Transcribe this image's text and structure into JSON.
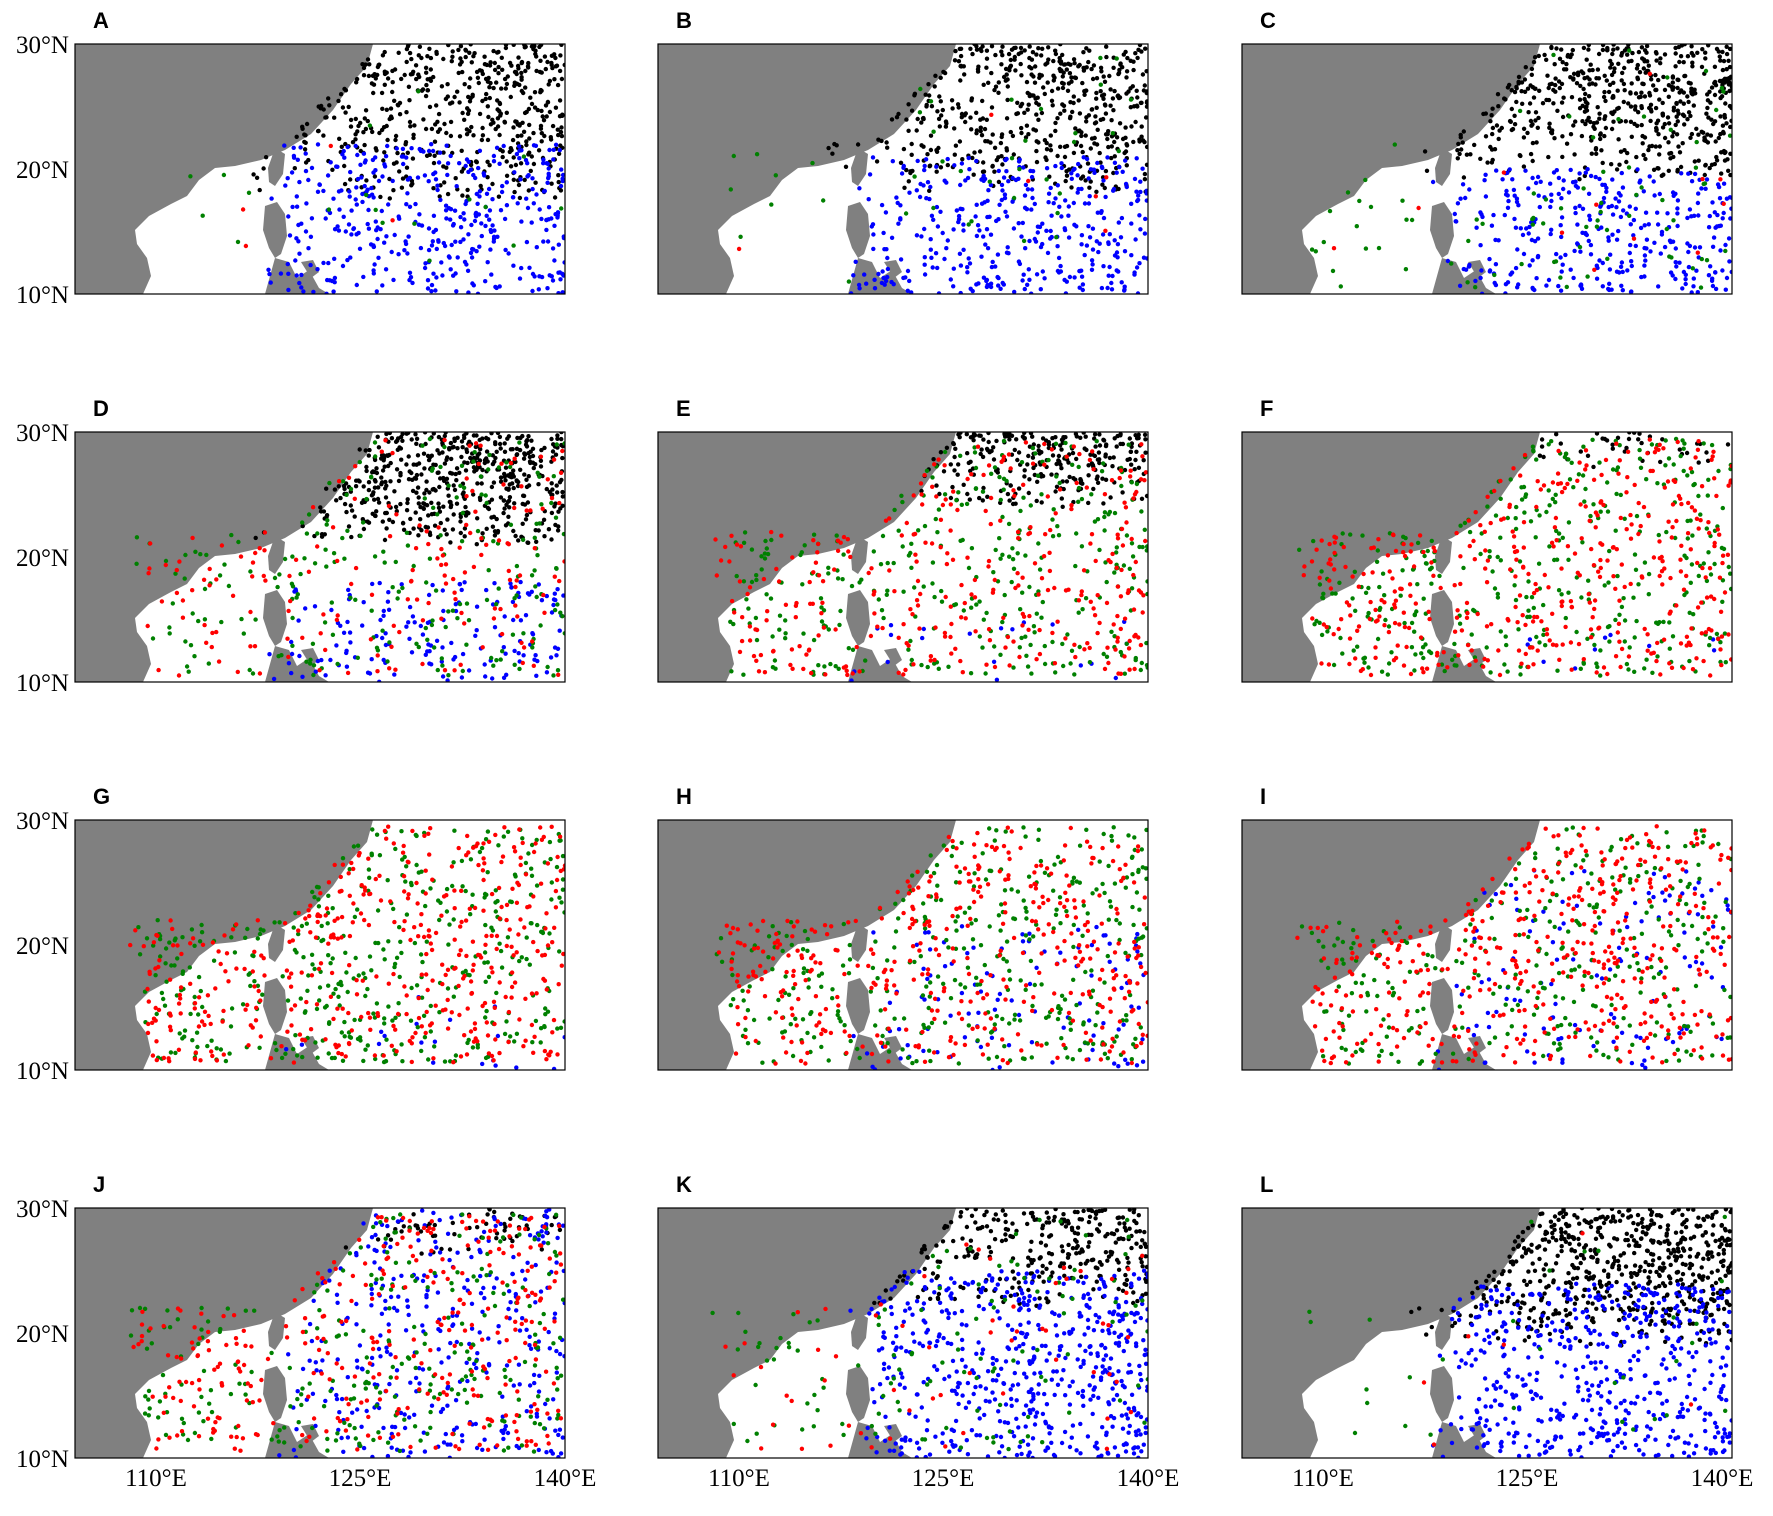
{
  "figure": {
    "panel_letters": [
      "A",
      "B",
      "C",
      "D",
      "E",
      "F",
      "G",
      "H",
      "I",
      "J",
      "K",
      "L"
    ],
    "y_tick_labels": [
      "30°N",
      "20°N",
      "10°N"
    ],
    "x_tick_labels": [
      "110°E",
      "125°E",
      "140°E"
    ],
    "colors": {
      "land": "#808080",
      "black_points": "#000000",
      "blue_points": "#0000ff",
      "green_points": "#008000",
      "red_points": "#ff0000"
    }
  },
  "map_data": {
    "type": "scatter",
    "lon_range": [
      104,
      140
    ],
    "lat_range": [
      10,
      30
    ],
    "x_ticks": [
      110,
      125,
      140
    ],
    "y_ticks": [
      30,
      20,
      10
    ],
    "panels": [
      {
        "letter": "A",
        "mix": {
          "black": 520,
          "blue": 420,
          "green": 18,
          "red": 4
        },
        "black_lat_min": 17.5,
        "blue_lat_max": 22
      },
      {
        "letter": "B",
        "mix": {
          "black": 520,
          "blue": 380,
          "green": 40,
          "red": 6
        },
        "black_lat_min": 18,
        "blue_lat_max": 21
      },
      {
        "letter": "C",
        "mix": {
          "black": 560,
          "blue": 340,
          "green": 80,
          "red": 12
        },
        "black_lat_min": 19,
        "blue_lat_max": 20
      },
      {
        "letter": "D",
        "mix": {
          "black": 520,
          "blue": 160,
          "green": 220,
          "red": 170
        },
        "black_lat_min": 21,
        "blue_lat_max": 18
      },
      {
        "letter": "E",
        "mix": {
          "black": 260,
          "blue": 20,
          "green": 330,
          "red": 320
        },
        "black_lat_min": 24,
        "blue_lat_max": 15
      },
      {
        "letter": "F",
        "mix": {
          "black": 40,
          "blue": 10,
          "green": 380,
          "red": 420
        },
        "black_lat_min": 27,
        "blue_lat_max": 14
      },
      {
        "letter": "G",
        "mix": {
          "black": 0,
          "blue": 20,
          "green": 420,
          "red": 440
        },
        "black_lat_min": 30,
        "blue_lat_max": 16
      },
      {
        "letter": "H",
        "mix": {
          "black": 0,
          "blue": 110,
          "green": 360,
          "red": 400
        },
        "black_lat_min": 30,
        "blue_lat_max": 22
      },
      {
        "letter": "I",
        "mix": {
          "black": 0,
          "blue": 130,
          "green": 300,
          "red": 440
        },
        "black_lat_min": 30,
        "blue_lat_max": 26
      },
      {
        "letter": "J",
        "mix": {
          "black": 60,
          "blue": 340,
          "green": 260,
          "red": 320
        },
        "black_lat_min": 26,
        "blue_lat_max": 30
      },
      {
        "letter": "K",
        "mix": {
          "black": 300,
          "blue": 560,
          "green": 120,
          "red": 60
        },
        "black_lat_min": 22,
        "blue_lat_max": 25
      },
      {
        "letter": "L",
        "mix": {
          "black": 620,
          "blue": 520,
          "green": 30,
          "red": 6
        },
        "black_lat_min": 19,
        "blue_lat_max": 24
      }
    ]
  }
}
